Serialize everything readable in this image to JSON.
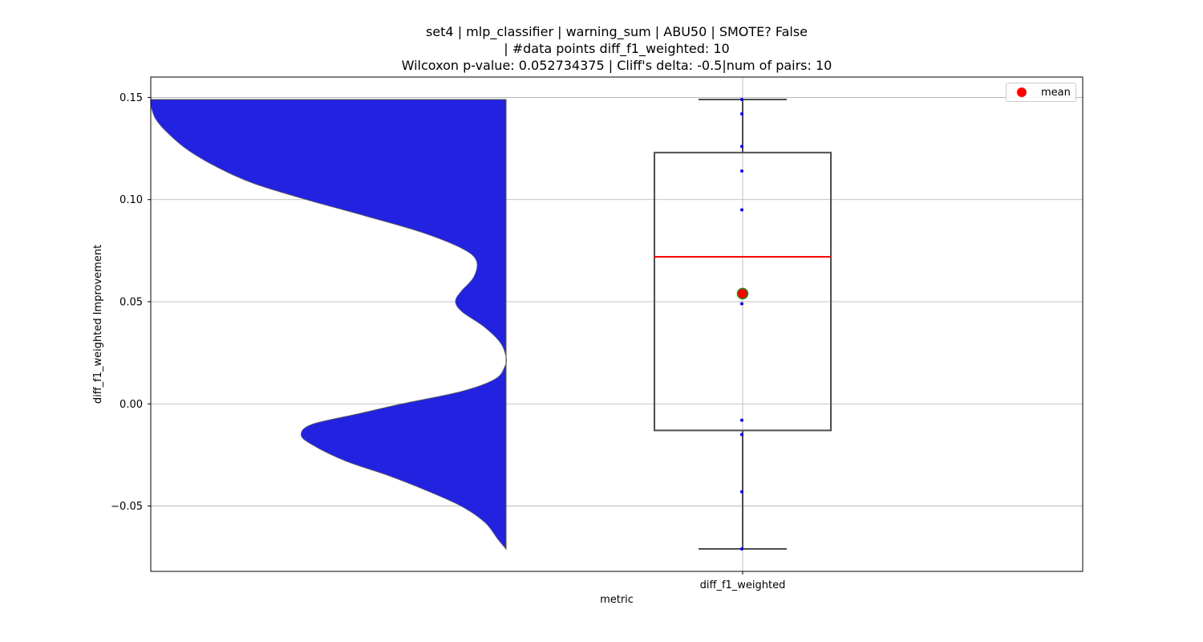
{
  "title": {
    "line1": "set4 | mlp_classifier | warning_sum | ABU50 | SMOTE? False",
    "line2": "| #data points diff_f1_weighted: 10",
    "line3": "Wilcoxon p-value: 0.052734375 | Cliff's delta: -0.5|num of pairs: 10"
  },
  "legend": {
    "label": "mean",
    "marker_color": "#ff0000"
  },
  "colors": {
    "violin_fill": "#2222e0",
    "box_edge": "#4d4d4d",
    "median_line": "#ff0000",
    "mean_marker": "#ff0000",
    "mean_edge": "#228b22",
    "points": "#0000ff",
    "grid": "#b0b0b0"
  },
  "chart_data": {
    "type": "box",
    "overlay": "half-violin",
    "xlabel": "metric",
    "ylabel": "diff_f1_weighted Improvement",
    "categories": [
      "diff_f1_weighted"
    ],
    "ylim": [
      -0.082,
      0.16
    ],
    "yticks": [
      -0.05,
      0.0,
      0.05,
      0.1,
      0.15
    ],
    "ytick_labels": [
      "−0.05",
      "0.00",
      "0.05",
      "0.10",
      "0.15"
    ],
    "grid": true,
    "legend_position": "top-right",
    "box": {
      "min": -0.071,
      "q1": -0.013,
      "median": 0.072,
      "q3": 0.123,
      "max": 0.149,
      "mean": 0.054
    },
    "points": [
      -0.071,
      -0.043,
      -0.015,
      -0.008,
      0.049,
      0.095,
      0.114,
      0.126,
      0.142,
      0.149
    ],
    "violin_density": [
      [
        -0.071,
        0.0
      ],
      [
        -0.066,
        0.03
      ],
      [
        -0.058,
        0.075
      ],
      [
        -0.05,
        0.16
      ],
      [
        -0.042,
        0.29
      ],
      [
        -0.035,
        0.42
      ],
      [
        -0.028,
        0.57
      ],
      [
        -0.02,
        0.69
      ],
      [
        -0.015,
        0.73
      ],
      [
        -0.01,
        0.69
      ],
      [
        -0.005,
        0.53
      ],
      [
        0.0,
        0.37
      ],
      [
        0.006,
        0.16
      ],
      [
        0.012,
        0.04
      ],
      [
        0.018,
        0.005
      ],
      [
        0.023,
        0.0
      ],
      [
        0.03,
        0.02
      ],
      [
        0.038,
        0.08
      ],
      [
        0.045,
        0.155
      ],
      [
        0.05,
        0.18
      ],
      [
        0.055,
        0.16
      ],
      [
        0.062,
        0.115
      ],
      [
        0.07,
        0.105
      ],
      [
        0.076,
        0.155
      ],
      [
        0.084,
        0.3
      ],
      [
        0.092,
        0.5
      ],
      [
        0.1,
        0.71
      ],
      [
        0.108,
        0.9
      ],
      [
        0.116,
        1.03
      ],
      [
        0.124,
        1.13
      ],
      [
        0.132,
        1.2
      ],
      [
        0.14,
        1.25
      ],
      [
        0.149,
        1.27
      ]
    ]
  }
}
